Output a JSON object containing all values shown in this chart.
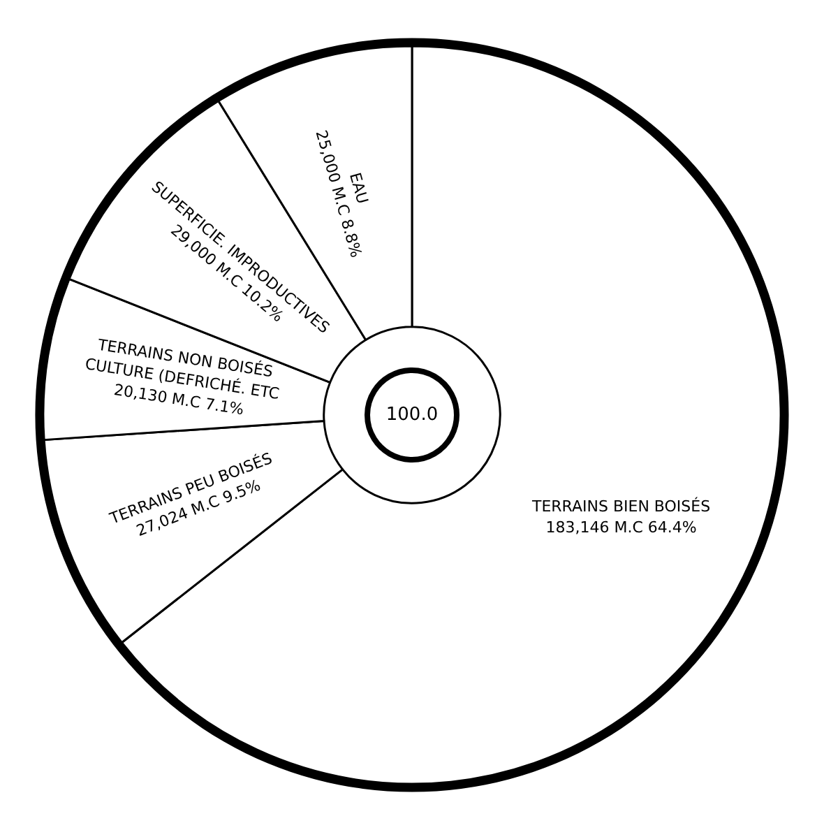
{
  "chart_data": {
    "type": "donut",
    "categories": [
      "TERRAINS BIEN BOISÉS",
      "TERRAINS PEU BOISÉS",
      "TERRAINS NON BOISÉS\nCULTURE (DEFRICHÉ. ETC",
      "SUPERFICIE. IMPRODUCTIVES",
      "EAU"
    ],
    "values": [
      183146,
      27024,
      20130,
      29000,
      25000
    ],
    "value_labels": [
      "183,146 M.C 64.4%",
      "27,024 M.C 9.5%",
      "20,130 M.C 7.1%",
      "29,000 M.C 10.2%",
      "25,000 M.C 8.8%"
    ],
    "colors": [
      "#ffffff",
      "#ffffff",
      "#ffffff",
      "#ffffff",
      "#ffffff"
    ],
    "annotations": [
      "100.0"
    ],
    "legend": false
  }
}
